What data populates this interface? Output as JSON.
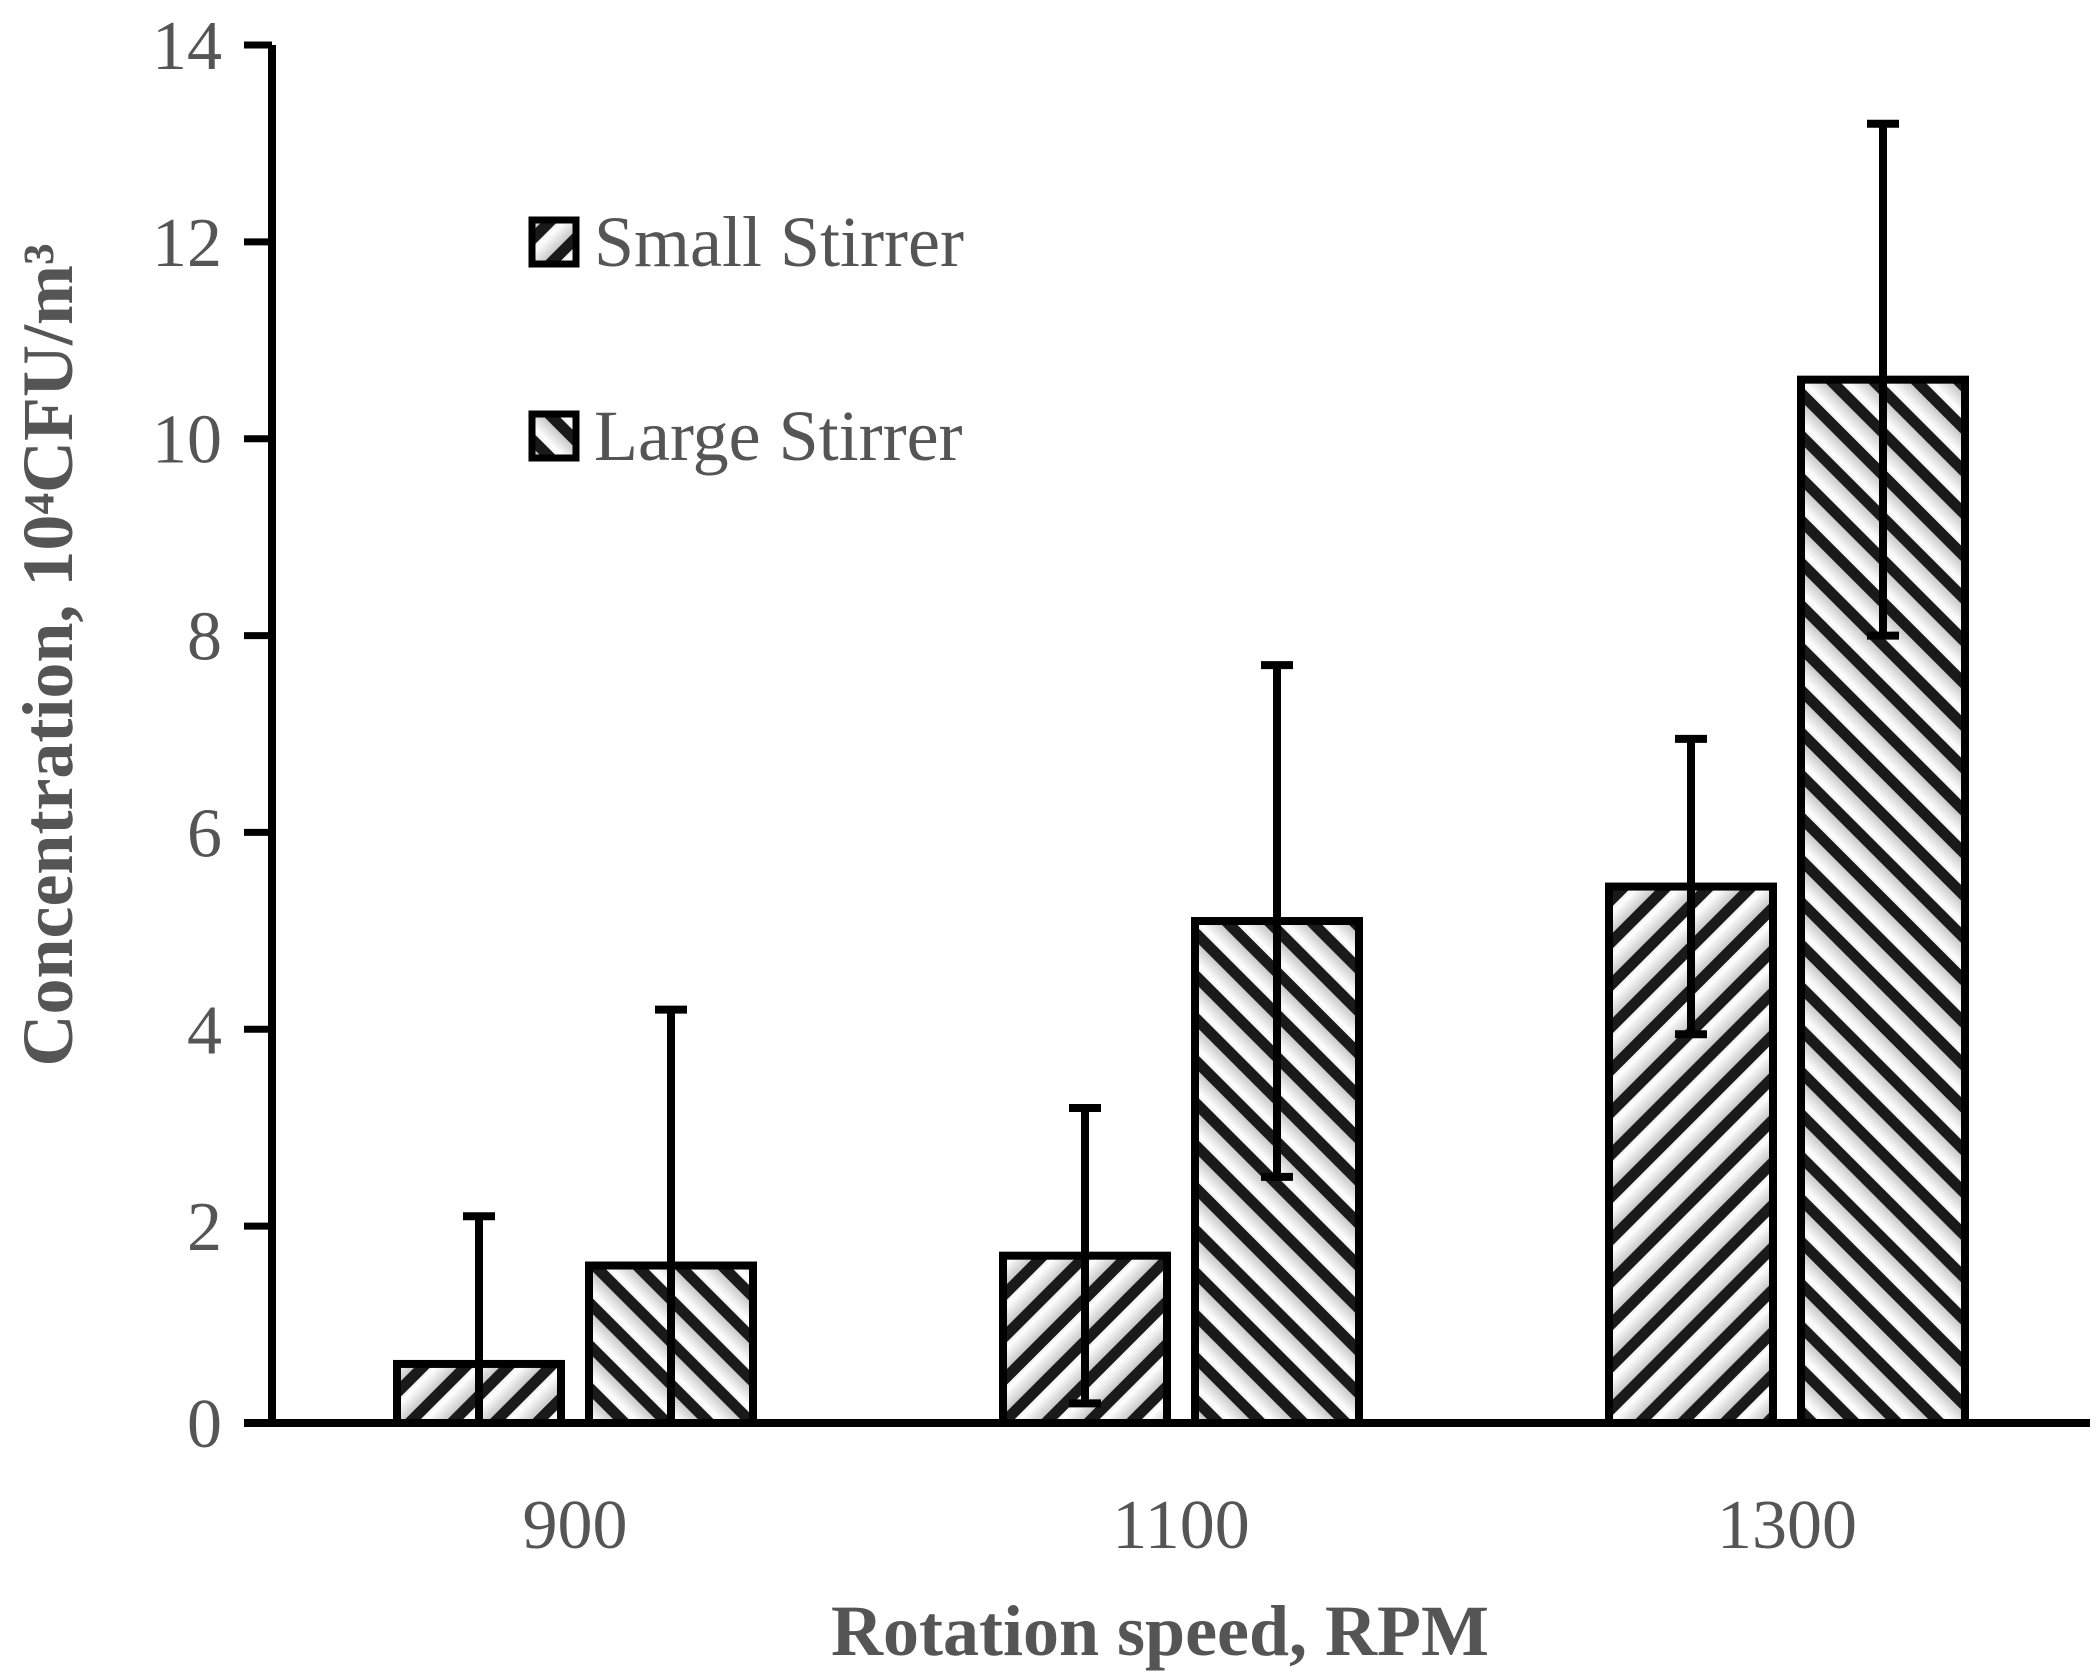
{
  "chart_data": {
    "type": "bar",
    "title": "",
    "xlabel": "Rotation speed, RPM",
    "ylabel": "Concentration, 10⁴CFU/m³",
    "ylim": [
      0,
      14
    ],
    "yticks": [
      0,
      2,
      4,
      6,
      8,
      10,
      12,
      14
    ],
    "categories": [
      "900",
      "1100",
      "1300"
    ],
    "series": [
      {
        "name": "Small Stirrer",
        "values": [
          0.6,
          1.7,
          5.45
        ],
        "error": [
          1.5,
          1.5,
          1.5
        ],
        "pattern": "hatch-up"
      },
      {
        "name": "Large Stirrer",
        "values": [
          1.6,
          5.1,
          10.6
        ],
        "error": [
          2.6,
          2.6,
          2.6
        ],
        "pattern": "hatch-down"
      }
    ],
    "grid": false,
    "legend": {
      "position": "top-left"
    }
  },
  "colors": {
    "axis": "#000000",
    "hatch": "#1a1a1a",
    "text": "#555555",
    "bar_fill": "#f4f4f4"
  }
}
